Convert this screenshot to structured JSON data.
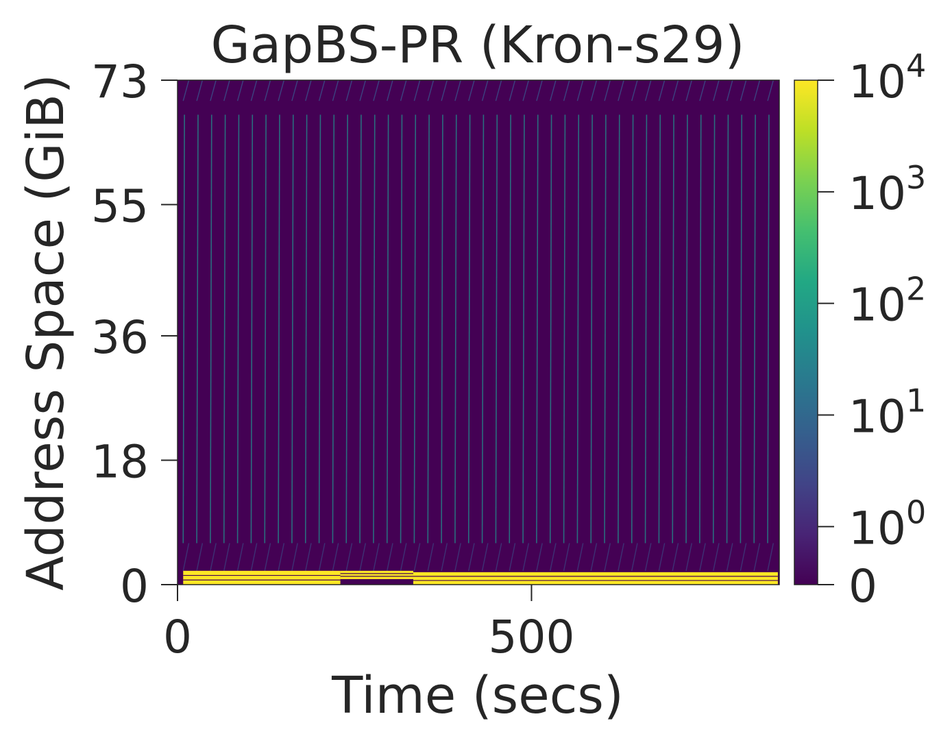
{
  "chart_data": {
    "type": "heatmap",
    "title": "GapBS-PR (Kron-s29)",
    "xlabel": "Time (secs)",
    "ylabel": "Address Space (GiB)",
    "xlim": [
      0,
      850
    ],
    "ylim": [
      0,
      73
    ],
    "x_ticks": [
      0,
      500
    ],
    "x_tick_labels": [
      "0",
      "500"
    ],
    "y_ticks": [
      0,
      18,
      36,
      55,
      73
    ],
    "y_tick_labels": [
      "0",
      "18",
      "36",
      "55",
      "73"
    ],
    "colormap": "viridis",
    "colorbar": {
      "scale": "symlog",
      "ticks": [
        0,
        1,
        10,
        100,
        1000,
        10000
      ],
      "tick_labels": [
        {
          "base": "0",
          "exp": ""
        },
        {
          "base": "10",
          "exp": "0"
        },
        {
          "base": "10",
          "exp": "1"
        },
        {
          "base": "10",
          "exp": "2"
        },
        {
          "base": "10",
          "exp": "3"
        },
        {
          "base": "10",
          "exp": "4"
        }
      ]
    },
    "background_value": 0,
    "hot_bands": [
      {
        "x_start": 8,
        "x_end": 230,
        "y_bottom": 0.0,
        "y_top": 2.0,
        "value": 10000
      },
      {
        "x_start": 230,
        "x_end": 333,
        "y_bottom": 0.8,
        "y_top": 2.0,
        "value": 10000
      },
      {
        "x_start": 333,
        "x_end": 848,
        "y_bottom": 0.0,
        "y_top": 1.8,
        "value": 10000
      }
    ],
    "scan_sweeps": {
      "period_secs": 19.2,
      "x_start": 8,
      "x_end": 848,
      "y_bottom": 6,
      "y_top": 68,
      "value": 10
    },
    "top_band": {
      "y_bottom": 70,
      "y_top": 73,
      "value": 1
    },
    "low_band": {
      "y_bottom": 2,
      "y_top": 6,
      "value": 1
    }
  },
  "colors": {
    "background": "#440154",
    "hot": "#fde725",
    "sweep": "#21918c",
    "faint": "#3b528b",
    "text": "#262626"
  }
}
